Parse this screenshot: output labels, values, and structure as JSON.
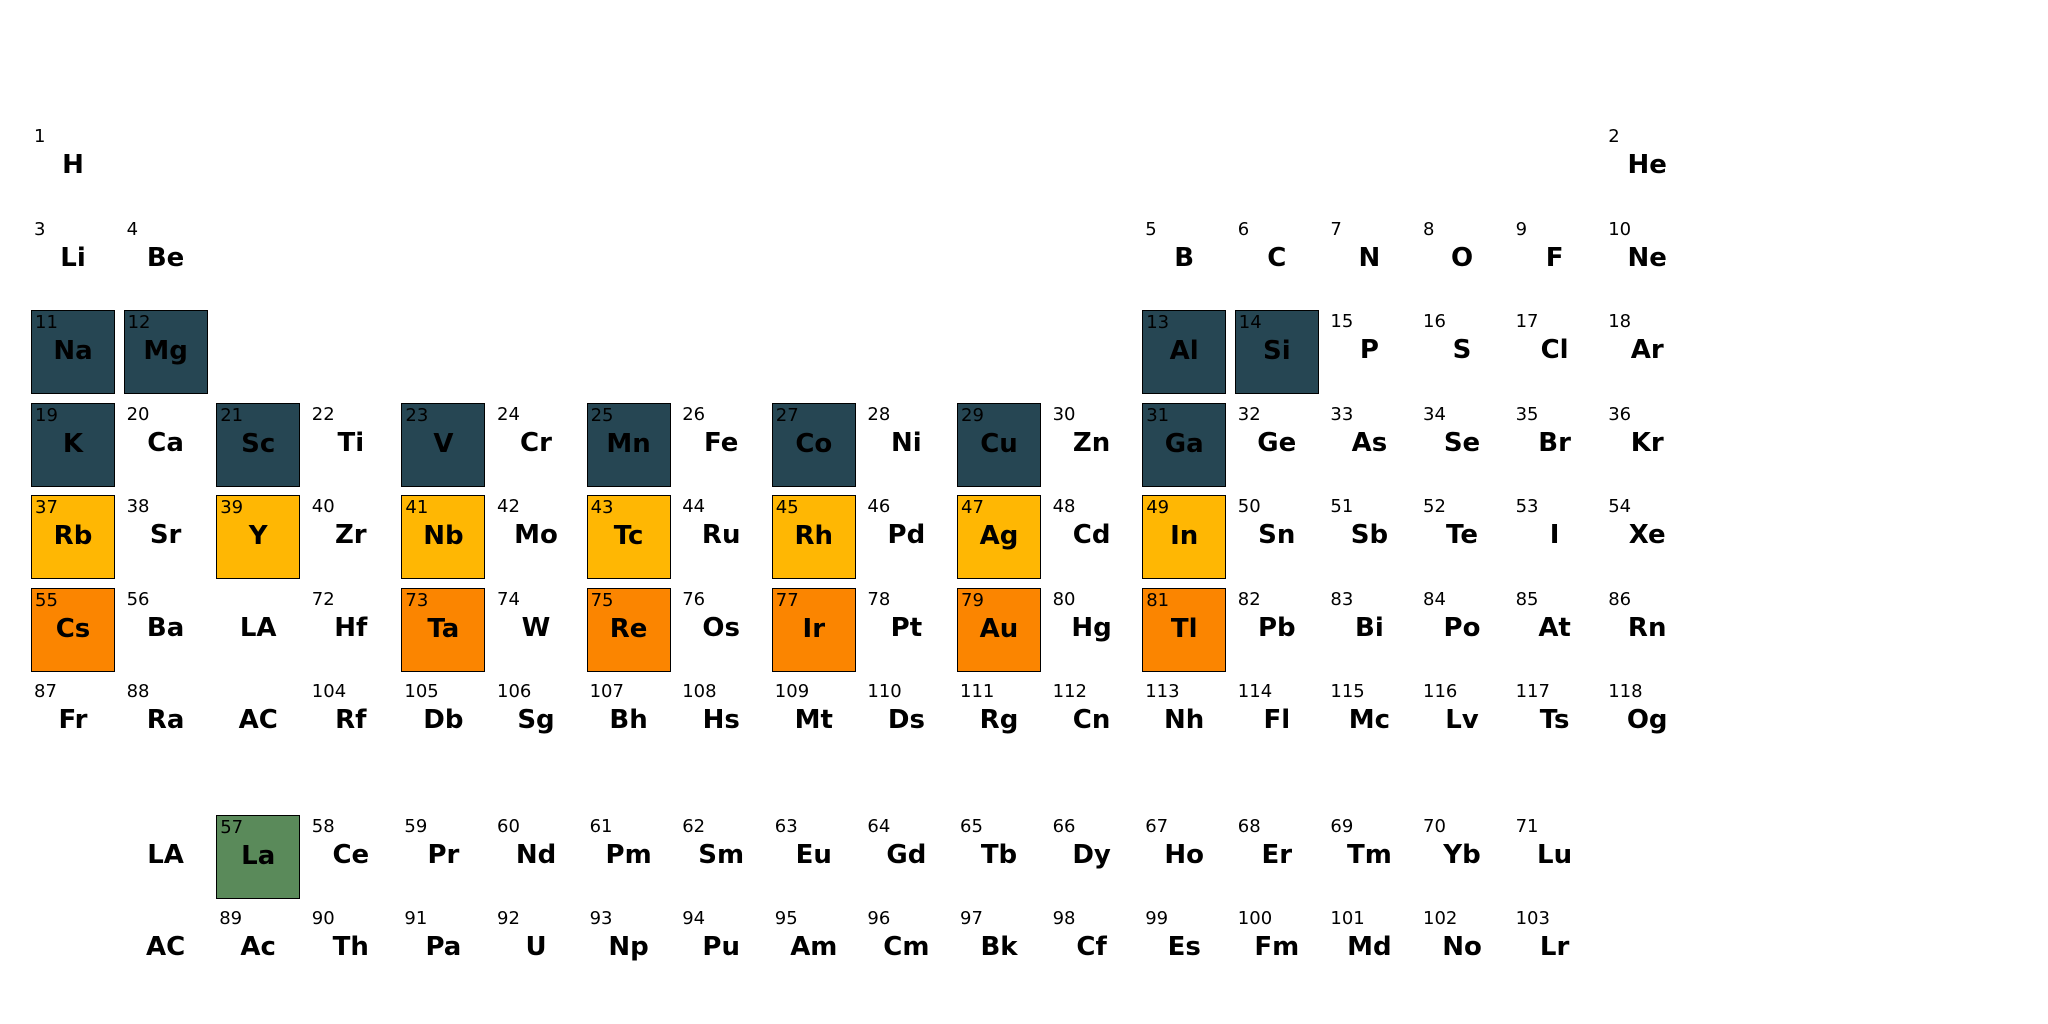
{
  "colors": {
    "dark_slate": "#264653",
    "amber": "#FFB703",
    "orange": "#FB8500",
    "green": "#5A8A5A",
    "none": "#FFFFFF"
  },
  "elements": [
    {
      "n": "1",
      "s": "H",
      "row": 1,
      "col": 1,
      "hl": null
    },
    {
      "n": "2",
      "s": "He",
      "row": 1,
      "col": 18,
      "hl": null
    },
    {
      "n": "3",
      "s": "Li",
      "row": 2,
      "col": 1,
      "hl": null
    },
    {
      "n": "4",
      "s": "Be",
      "row": 2,
      "col": 2,
      "hl": null
    },
    {
      "n": "5",
      "s": "B",
      "row": 2,
      "col": 13,
      "hl": null
    },
    {
      "n": "6",
      "s": "C",
      "row": 2,
      "col": 14,
      "hl": null
    },
    {
      "n": "7",
      "s": "N",
      "row": 2,
      "col": 15,
      "hl": null
    },
    {
      "n": "8",
      "s": "O",
      "row": 2,
      "col": 16,
      "hl": null
    },
    {
      "n": "9",
      "s": "F",
      "row": 2,
      "col": 17,
      "hl": null
    },
    {
      "n": "10",
      "s": "Ne",
      "row": 2,
      "col": 18,
      "hl": null
    },
    {
      "n": "11",
      "s": "Na",
      "row": 3,
      "col": 1,
      "hl": "dark_slate"
    },
    {
      "n": "12",
      "s": "Mg",
      "row": 3,
      "col": 2,
      "hl": "dark_slate"
    },
    {
      "n": "13",
      "s": "Al",
      "row": 3,
      "col": 13,
      "hl": "dark_slate"
    },
    {
      "n": "14",
      "s": "Si",
      "row": 3,
      "col": 14,
      "hl": "dark_slate"
    },
    {
      "n": "15",
      "s": "P",
      "row": 3,
      "col": 15,
      "hl": null
    },
    {
      "n": "16",
      "s": "S",
      "row": 3,
      "col": 16,
      "hl": null
    },
    {
      "n": "17",
      "s": "Cl",
      "row": 3,
      "col": 17,
      "hl": null
    },
    {
      "n": "18",
      "s": "Ar",
      "row": 3,
      "col": 18,
      "hl": null
    },
    {
      "n": "19",
      "s": "K",
      "row": 4,
      "col": 1,
      "hl": "dark_slate"
    },
    {
      "n": "20",
      "s": "Ca",
      "row": 4,
      "col": 2,
      "hl": null
    },
    {
      "n": "21",
      "s": "Sc",
      "row": 4,
      "col": 3,
      "hl": "dark_slate"
    },
    {
      "n": "22",
      "s": "Ti",
      "row": 4,
      "col": 4,
      "hl": null
    },
    {
      "n": "23",
      "s": "V",
      "row": 4,
      "col": 5,
      "hl": "dark_slate"
    },
    {
      "n": "24",
      "s": "Cr",
      "row": 4,
      "col": 6,
      "hl": null
    },
    {
      "n": "25",
      "s": "Mn",
      "row": 4,
      "col": 7,
      "hl": "dark_slate"
    },
    {
      "n": "26",
      "s": "Fe",
      "row": 4,
      "col": 8,
      "hl": null
    },
    {
      "n": "27",
      "s": "Co",
      "row": 4,
      "col": 9,
      "hl": "dark_slate"
    },
    {
      "n": "28",
      "s": "Ni",
      "row": 4,
      "col": 10,
      "hl": null
    },
    {
      "n": "29",
      "s": "Cu",
      "row": 4,
      "col": 11,
      "hl": "dark_slate"
    },
    {
      "n": "30",
      "s": "Zn",
      "row": 4,
      "col": 12,
      "hl": null
    },
    {
      "n": "31",
      "s": "Ga",
      "row": 4,
      "col": 13,
      "hl": "dark_slate"
    },
    {
      "n": "32",
      "s": "Ge",
      "row": 4,
      "col": 14,
      "hl": null
    },
    {
      "n": "33",
      "s": "As",
      "row": 4,
      "col": 15,
      "hl": null
    },
    {
      "n": "34",
      "s": "Se",
      "row": 4,
      "col": 16,
      "hl": null
    },
    {
      "n": "35",
      "s": "Br",
      "row": 4,
      "col": 17,
      "hl": null
    },
    {
      "n": "36",
      "s": "Kr",
      "row": 4,
      "col": 18,
      "hl": null
    },
    {
      "n": "37",
      "s": "Rb",
      "row": 5,
      "col": 1,
      "hl": "amber"
    },
    {
      "n": "38",
      "s": "Sr",
      "row": 5,
      "col": 2,
      "hl": null
    },
    {
      "n": "39",
      "s": "Y",
      "row": 5,
      "col": 3,
      "hl": "amber"
    },
    {
      "n": "40",
      "s": "Zr",
      "row": 5,
      "col": 4,
      "hl": null
    },
    {
      "n": "41",
      "s": "Nb",
      "row": 5,
      "col": 5,
      "hl": "amber"
    },
    {
      "n": "42",
      "s": "Mo",
      "row": 5,
      "col": 6,
      "hl": null
    },
    {
      "n": "43",
      "s": "Tc",
      "row": 5,
      "col": 7,
      "hl": "amber"
    },
    {
      "n": "44",
      "s": "Ru",
      "row": 5,
      "col": 8,
      "hl": null
    },
    {
      "n": "45",
      "s": "Rh",
      "row": 5,
      "col": 9,
      "hl": "amber"
    },
    {
      "n": "46",
      "s": "Pd",
      "row": 5,
      "col": 10,
      "hl": null
    },
    {
      "n": "47",
      "s": "Ag",
      "row": 5,
      "col": 11,
      "hl": "amber"
    },
    {
      "n": "48",
      "s": "Cd",
      "row": 5,
      "col": 12,
      "hl": null
    },
    {
      "n": "49",
      "s": "In",
      "row": 5,
      "col": 13,
      "hl": "amber"
    },
    {
      "n": "50",
      "s": "Sn",
      "row": 5,
      "col": 14,
      "hl": null
    },
    {
      "n": "51",
      "s": "Sb",
      "row": 5,
      "col": 15,
      "hl": null
    },
    {
      "n": "52",
      "s": "Te",
      "row": 5,
      "col": 16,
      "hl": null
    },
    {
      "n": "53",
      "s": "I",
      "row": 5,
      "col": 17,
      "hl": null
    },
    {
      "n": "54",
      "s": "Xe",
      "row": 5,
      "col": 18,
      "hl": null
    },
    {
      "n": "55",
      "s": "Cs",
      "row": 6,
      "col": 1,
      "hl": "orange"
    },
    {
      "n": "56",
      "s": "Ba",
      "row": 6,
      "col": 2,
      "hl": null
    },
    {
      "n": "",
      "s": "LA",
      "row": 6,
      "col": 3,
      "hl": null
    },
    {
      "n": "72",
      "s": "Hf",
      "row": 6,
      "col": 4,
      "hl": null
    },
    {
      "n": "73",
      "s": "Ta",
      "row": 6,
      "col": 5,
      "hl": "orange"
    },
    {
      "n": "74",
      "s": "W",
      "row": 6,
      "col": 6,
      "hl": null
    },
    {
      "n": "75",
      "s": "Re",
      "row": 6,
      "col": 7,
      "hl": "orange"
    },
    {
      "n": "76",
      "s": "Os",
      "row": 6,
      "col": 8,
      "hl": null
    },
    {
      "n": "77",
      "s": "Ir",
      "row": 6,
      "col": 9,
      "hl": "orange"
    },
    {
      "n": "78",
      "s": "Pt",
      "row": 6,
      "col": 10,
      "hl": null
    },
    {
      "n": "79",
      "s": "Au",
      "row": 6,
      "col": 11,
      "hl": "orange"
    },
    {
      "n": "80",
      "s": "Hg",
      "row": 6,
      "col": 12,
      "hl": null
    },
    {
      "n": "81",
      "s": "Tl",
      "row": 6,
      "col": 13,
      "hl": "orange"
    },
    {
      "n": "82",
      "s": "Pb",
      "row": 6,
      "col": 14,
      "hl": null
    },
    {
      "n": "83",
      "s": "Bi",
      "row": 6,
      "col": 15,
      "hl": null
    },
    {
      "n": "84",
      "s": "Po",
      "row": 6,
      "col": 16,
      "hl": null
    },
    {
      "n": "85",
      "s": "At",
      "row": 6,
      "col": 17,
      "hl": null
    },
    {
      "n": "86",
      "s": "Rn",
      "row": 6,
      "col": 18,
      "hl": null
    },
    {
      "n": "87",
      "s": "Fr",
      "row": 7,
      "col": 1,
      "hl": null
    },
    {
      "n": "88",
      "s": "Ra",
      "row": 7,
      "col": 2,
      "hl": null
    },
    {
      "n": "",
      "s": "AC",
      "row": 7,
      "col": 3,
      "hl": null
    },
    {
      "n": "104",
      "s": "Rf",
      "row": 7,
      "col": 4,
      "hl": null
    },
    {
      "n": "105",
      "s": "Db",
      "row": 7,
      "col": 5,
      "hl": null
    },
    {
      "n": "106",
      "s": "Sg",
      "row": 7,
      "col": 6,
      "hl": null
    },
    {
      "n": "107",
      "s": "Bh",
      "row": 7,
      "col": 7,
      "hl": null
    },
    {
      "n": "108",
      "s": "Hs",
      "row": 7,
      "col": 8,
      "hl": null
    },
    {
      "n": "109",
      "s": "Mt",
      "row": 7,
      "col": 9,
      "hl": null
    },
    {
      "n": "110",
      "s": "Ds",
      "row": 7,
      "col": 10,
      "hl": null
    },
    {
      "n": "111",
      "s": "Rg",
      "row": 7,
      "col": 11,
      "hl": null
    },
    {
      "n": "112",
      "s": "Cn",
      "row": 7,
      "col": 12,
      "hl": null
    },
    {
      "n": "113",
      "s": "Nh",
      "row": 7,
      "col": 13,
      "hl": null
    },
    {
      "n": "114",
      "s": "Fl",
      "row": 7,
      "col": 14,
      "hl": null
    },
    {
      "n": "115",
      "s": "Mc",
      "row": 7,
      "col": 15,
      "hl": null
    },
    {
      "n": "116",
      "s": "Lv",
      "row": 7,
      "col": 16,
      "hl": null
    },
    {
      "n": "117",
      "s": "Ts",
      "row": 7,
      "col": 17,
      "hl": null
    },
    {
      "n": "118",
      "s": "Og",
      "row": 7,
      "col": 18,
      "hl": null
    },
    {
      "n": "",
      "s": "LA",
      "row": 8,
      "col": 2,
      "hl": null
    },
    {
      "n": "57",
      "s": "La",
      "row": 8,
      "col": 3,
      "hl": "green"
    },
    {
      "n": "58",
      "s": "Ce",
      "row": 8,
      "col": 4,
      "hl": null
    },
    {
      "n": "59",
      "s": "Pr",
      "row": 8,
      "col": 5,
      "hl": null
    },
    {
      "n": "60",
      "s": "Nd",
      "row": 8,
      "col": 6,
      "hl": null
    },
    {
      "n": "61",
      "s": "Pm",
      "row": 8,
      "col": 7,
      "hl": null
    },
    {
      "n": "62",
      "s": "Sm",
      "row": 8,
      "col": 8,
      "hl": null
    },
    {
      "n": "63",
      "s": "Eu",
      "row": 8,
      "col": 9,
      "hl": null
    },
    {
      "n": "64",
      "s": "Gd",
      "row": 8,
      "col": 10,
      "hl": null
    },
    {
      "n": "65",
      "s": "Tb",
      "row": 8,
      "col": 11,
      "hl": null
    },
    {
      "n": "66",
      "s": "Dy",
      "row": 8,
      "col": 12,
      "hl": null
    },
    {
      "n": "67",
      "s": "Ho",
      "row": 8,
      "col": 13,
      "hl": null
    },
    {
      "n": "68",
      "s": "Er",
      "row": 8,
      "col": 14,
      "hl": null
    },
    {
      "n": "69",
      "s": "Tm",
      "row": 8,
      "col": 15,
      "hl": null
    },
    {
      "n": "70",
      "s": "Yb",
      "row": 8,
      "col": 16,
      "hl": null
    },
    {
      "n": "71",
      "s": "Lu",
      "row": 8,
      "col": 17,
      "hl": null
    },
    {
      "n": "",
      "s": "AC",
      "row": 9,
      "col": 2,
      "hl": null
    },
    {
      "n": "89",
      "s": "Ac",
      "row": 9,
      "col": 3,
      "hl": null
    },
    {
      "n": "90",
      "s": "Th",
      "row": 9,
      "col": 4,
      "hl": null
    },
    {
      "n": "91",
      "s": "Pa",
      "row": 9,
      "col": 5,
      "hl": null
    },
    {
      "n": "92",
      "s": "U",
      "row": 9,
      "col": 6,
      "hl": null
    },
    {
      "n": "93",
      "s": "Np",
      "row": 9,
      "col": 7,
      "hl": null
    },
    {
      "n": "94",
      "s": "Pu",
      "row": 9,
      "col": 8,
      "hl": null
    },
    {
      "n": "95",
      "s": "Am",
      "row": 9,
      "col": 9,
      "hl": null
    },
    {
      "n": "96",
      "s": "Cm",
      "row": 9,
      "col": 10,
      "hl": null
    },
    {
      "n": "97",
      "s": "Bk",
      "row": 9,
      "col": 11,
      "hl": null
    },
    {
      "n": "98",
      "s": "Cf",
      "row": 9,
      "col": 12,
      "hl": null
    },
    {
      "n": "99",
      "s": "Es",
      "row": 9,
      "col": 13,
      "hl": null
    },
    {
      "n": "100",
      "s": "Fm",
      "row": 9,
      "col": 14,
      "hl": null
    },
    {
      "n": "101",
      "s": "Md",
      "row": 9,
      "col": 15,
      "hl": null
    },
    {
      "n": "102",
      "s": "No",
      "row": 9,
      "col": 16,
      "hl": null
    },
    {
      "n": "103",
      "s": "Lr",
      "row": 9,
      "col": 17,
      "hl": null
    }
  ]
}
